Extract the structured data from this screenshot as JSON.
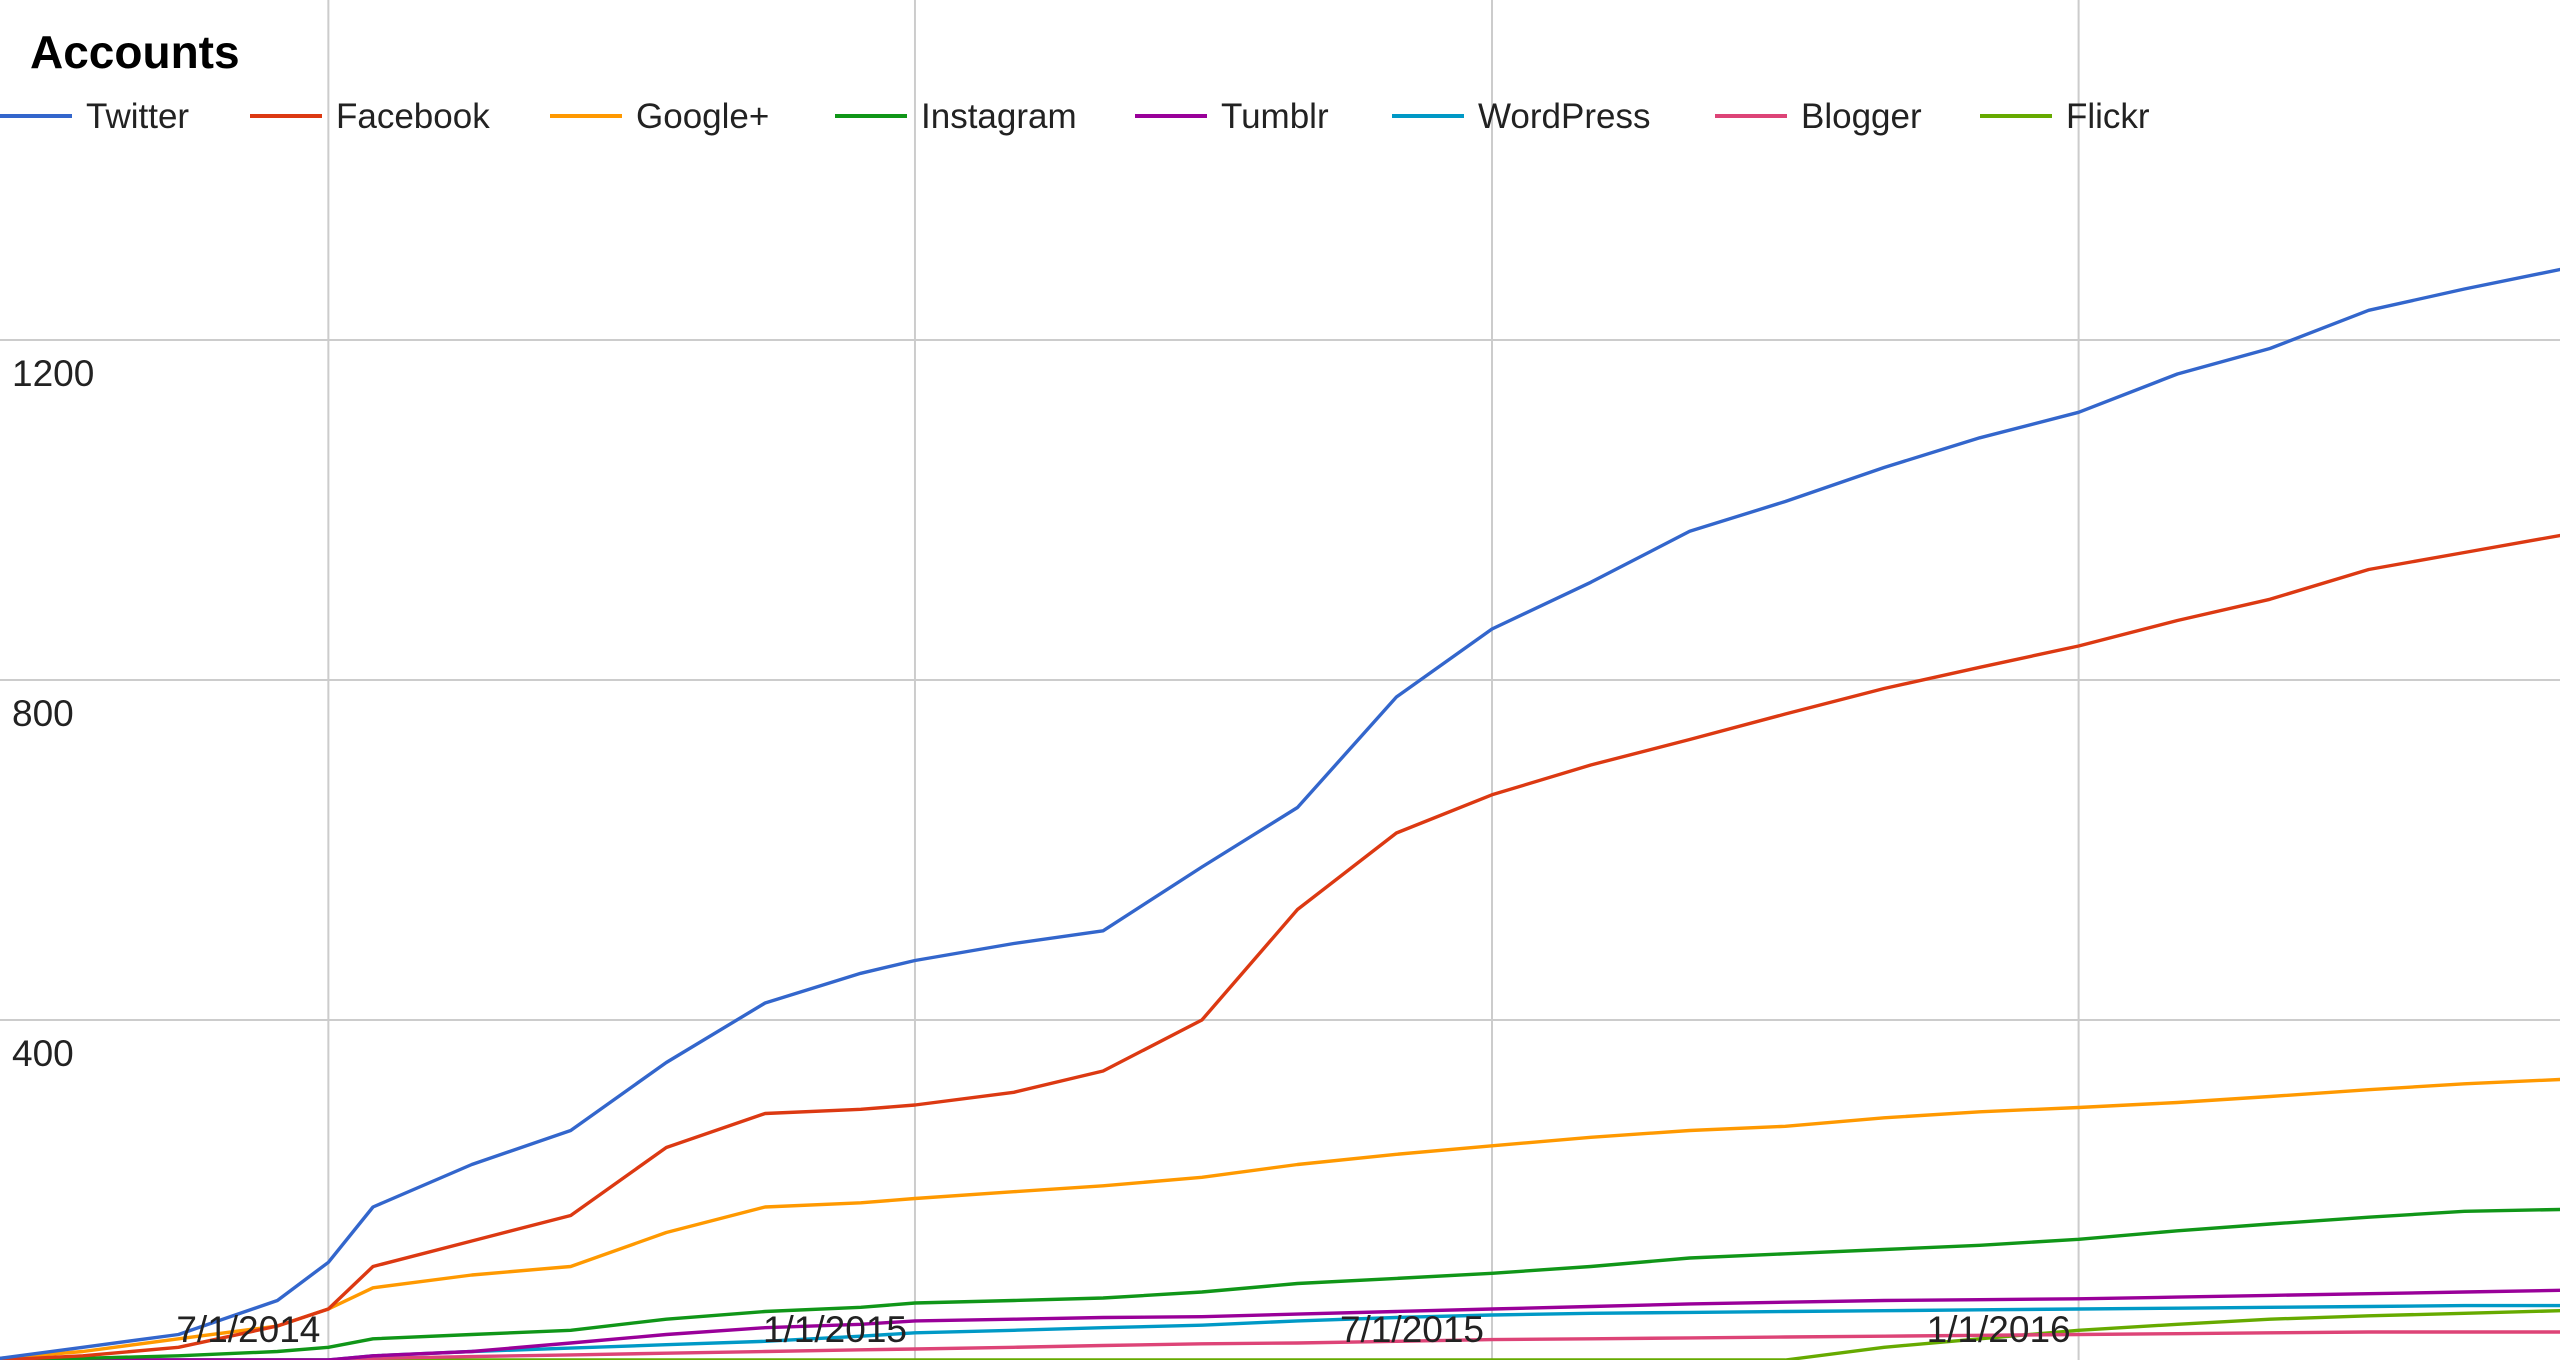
{
  "chart_data": {
    "type": "line",
    "title": "Accounts",
    "xlabel": "",
    "ylabel": "",
    "x_ticks": [
      "7/1/2014",
      "1/1/2015",
      "7/1/2015",
      "1/1/2016"
    ],
    "y_ticks": [
      400,
      800,
      1200
    ],
    "xlim": [
      "2014-03-20",
      "2016-05-31"
    ],
    "ylim": [
      0,
      1600
    ],
    "grid": true,
    "legend_position": "top",
    "x": [
      "2014-03-20",
      "2014-04-15",
      "2014-05-15",
      "2014-06-15",
      "2014-07-01",
      "2014-07-15",
      "2014-08-15",
      "2014-09-15",
      "2014-10-15",
      "2014-11-15",
      "2014-12-15",
      "2015-01-01",
      "2015-02-01",
      "2015-03-01",
      "2015-04-01",
      "2015-05-01",
      "2015-06-01",
      "2015-07-01",
      "2015-08-01",
      "2015-09-01",
      "2015-10-01",
      "2015-11-01",
      "2015-12-01",
      "2016-01-01",
      "2016-02-01",
      "2016-03-01",
      "2016-04-01",
      "2016-05-01",
      "2016-05-31"
    ],
    "series": [
      {
        "name": "Twitter",
        "color": "#3366cc",
        "values": [
          2,
          15,
          30,
          70,
          115,
          180,
          230,
          270,
          350,
          420,
          455,
          470,
          490,
          505,
          580,
          650,
          780,
          860,
          915,
          975,
          1010,
          1050,
          1085,
          1115,
          1160,
          1190,
          1235,
          1260,
          1283
        ]
      },
      {
        "name": "Facebook",
        "color": "#dc3912",
        "values": [
          0,
          5,
          15,
          40,
          60,
          110,
          140,
          170,
          250,
          290,
          295,
          300,
          315,
          340,
          400,
          530,
          620,
          665,
          700,
          730,
          760,
          790,
          815,
          840,
          870,
          895,
          930,
          950,
          970
        ]
      },
      {
        "name": "Google+",
        "color": "#ff9900",
        "values": [
          2,
          10,
          25,
          40,
          60,
          85,
          100,
          110,
          150,
          180,
          185,
          190,
          198,
          205,
          215,
          230,
          242,
          252,
          262,
          270,
          275,
          285,
          292,
          297,
          303,
          310,
          318,
          325,
          330
        ]
      },
      {
        "name": "Instagram",
        "color": "#109618",
        "values": [
          0,
          2,
          5,
          10,
          15,
          25,
          30,
          35,
          48,
          57,
          62,
          67,
          70,
          73,
          80,
          90,
          96,
          102,
          110,
          120,
          125,
          130,
          135,
          142,
          152,
          160,
          168,
          175,
          177
        ]
      },
      {
        "name": "Tumblr",
        "color": "#990099",
        "values": [
          0,
          0,
          0,
          0,
          0,
          5,
          10,
          20,
          30,
          38,
          42,
          46,
          48,
          50,
          51,
          54,
          57,
          60,
          63,
          66,
          68,
          70,
          71,
          72,
          74,
          76,
          78,
          80,
          82
        ]
      },
      {
        "name": "WordPress",
        "color": "#0099c6",
        "values": [
          0,
          0,
          0,
          0,
          0,
          5,
          10,
          14,
          18,
          22,
          28,
          32,
          35,
          38,
          41,
          46,
          50,
          53,
          55,
          56,
          57,
          58,
          59,
          60,
          61,
          62,
          63,
          64,
          64
        ]
      },
      {
        "name": "Blogger",
        "color": "#dd4477",
        "values": [
          0,
          0,
          0,
          0,
          0,
          2,
          4,
          6,
          8,
          10,
          12,
          13,
          15,
          17,
          19,
          20,
          22,
          24,
          25,
          26,
          27,
          28,
          29,
          30,
          31,
          32,
          33,
          33,
          33
        ]
      },
      {
        "name": "Flickr",
        "color": "#66aa00",
        "values": [
          0,
          0,
          0,
          0,
          0,
          0,
          0,
          0,
          0,
          0,
          0,
          0,
          0,
          0,
          0,
          0,
          0,
          0,
          0,
          0,
          0,
          15,
          25,
          35,
          42,
          48,
          52,
          55,
          58
        ]
      }
    ]
  }
}
